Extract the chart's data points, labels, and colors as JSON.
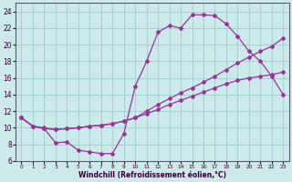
{
  "background_color": "#cdeaea",
  "grid_color": "#a0cccc",
  "line_color": "#993399",
  "marker_color": "#993399",
  "xlabel": "Windchill (Refroidissement éolien,°C)",
  "xlim": [
    -0.5,
    23.5
  ],
  "ylim": [
    6,
    25
  ],
  "yticks": [
    6,
    8,
    10,
    12,
    14,
    16,
    18,
    20,
    22,
    24
  ],
  "xticks": [
    0,
    1,
    2,
    3,
    4,
    5,
    6,
    7,
    8,
    9,
    10,
    11,
    12,
    13,
    14,
    15,
    16,
    17,
    18,
    19,
    20,
    21,
    22,
    23
  ],
  "curve1_x": [
    0,
    1,
    2,
    3,
    4,
    5,
    6,
    7,
    8,
    9,
    10,
    11,
    12,
    13,
    14,
    15,
    16,
    17,
    18,
    19,
    20,
    21,
    22,
    23
  ],
  "curve1_y": [
    11.2,
    10.2,
    9.9,
    8.2,
    8.3,
    7.3,
    7.1,
    6.9,
    6.9,
    9.3,
    15.0,
    18.0,
    21.5,
    22.3,
    22.0,
    23.6,
    23.6,
    23.5,
    22.5,
    21.0,
    19.2,
    18.0,
    16.2,
    14.0
  ],
  "curve2_x": [
    0,
    1,
    2,
    3,
    4,
    5,
    6,
    7,
    8,
    9,
    10,
    11,
    12,
    13,
    14,
    15,
    16,
    17,
    18,
    19,
    20,
    21,
    22,
    23
  ],
  "curve2_y": [
    11.2,
    10.2,
    10.0,
    9.8,
    9.9,
    10.0,
    10.2,
    10.3,
    10.5,
    10.8,
    11.2,
    12.0,
    12.8,
    13.5,
    14.2,
    14.8,
    15.5,
    16.2,
    17.0,
    17.8,
    18.5,
    19.2,
    19.8,
    20.8
  ],
  "curve3_x": [
    0,
    1,
    2,
    3,
    4,
    5,
    6,
    7,
    8,
    9,
    10,
    11,
    12,
    13,
    14,
    15,
    16,
    17,
    18,
    19,
    20,
    21,
    22,
    23
  ],
  "curve3_y": [
    11.2,
    10.2,
    9.9,
    9.8,
    9.9,
    10.0,
    10.2,
    10.3,
    10.5,
    10.8,
    11.2,
    11.7,
    12.2,
    12.8,
    13.3,
    13.8,
    14.3,
    14.8,
    15.3,
    15.7,
    16.0,
    16.2,
    16.4,
    16.7
  ]
}
